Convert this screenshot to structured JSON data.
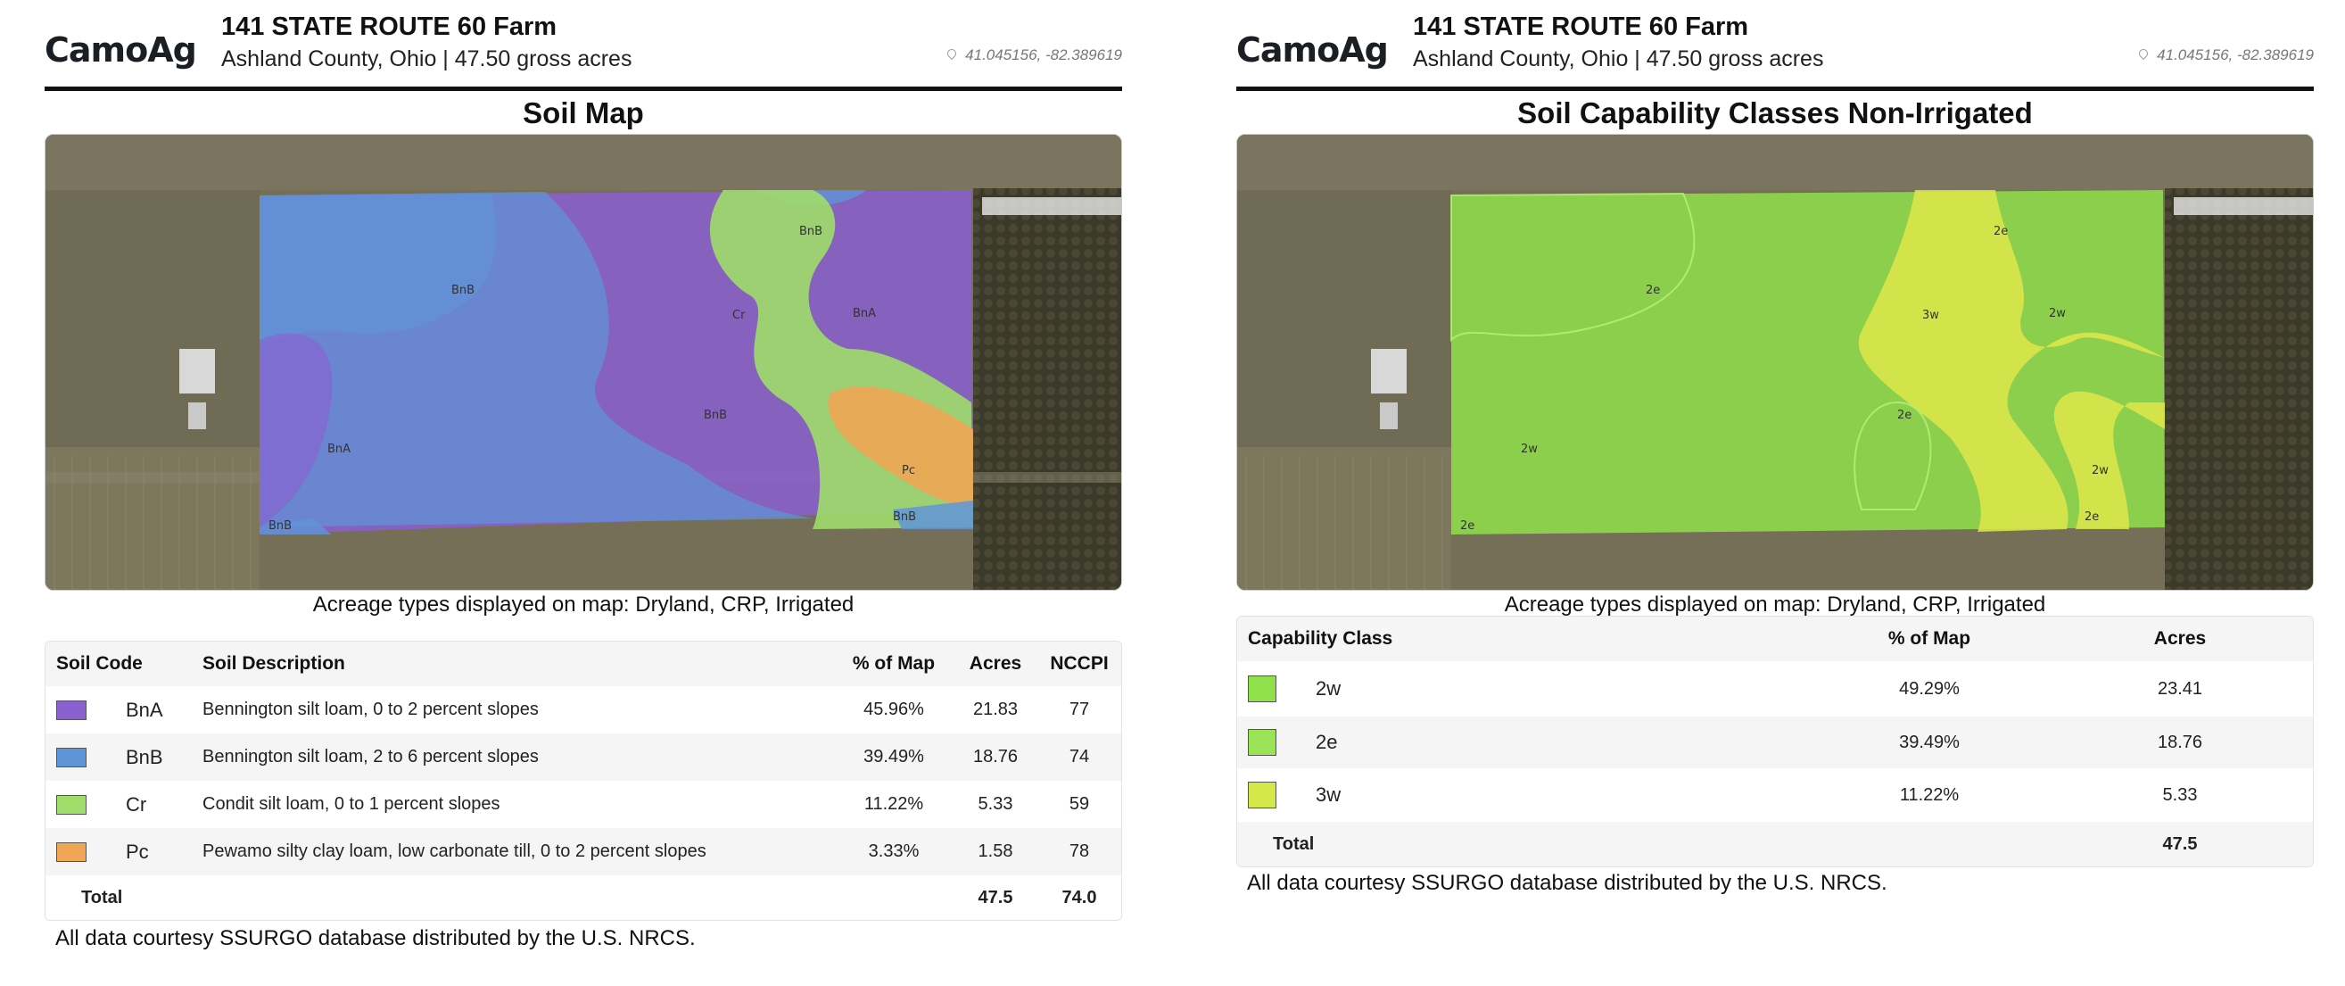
{
  "brand": {
    "logo_text": "CamoAg"
  },
  "farm": {
    "title": "141 STATE ROUTE 60 Farm",
    "subtitle": "Ashland County, Ohio | 47.50 gross acres",
    "coords": "41.045156, -82.389619"
  },
  "soil_map": {
    "title": "Soil Map",
    "acreage_note": "Acreage types displayed on map: Dryland, CRP, Irrigated",
    "map_labels": [
      "BnB",
      "BnB",
      "Cr",
      "BnA",
      "BnB",
      "BnA",
      "Pc",
      "BnB",
      "BnB"
    ],
    "columns": {
      "code": "Soil Code",
      "desc": "Soil Description",
      "pct": "% of Map",
      "acres": "Acres",
      "nccpi": "NCCPI"
    },
    "rows": [
      {
        "code": "BnA",
        "desc": "Bennington silt loam, 0 to 2 percent slopes",
        "pct": "45.96%",
        "acres": "21.83",
        "nccpi": "77",
        "color": "#8a5fd0"
      },
      {
        "code": "BnB",
        "desc": "Bennington silt loam, 2 to 6 percent slopes",
        "pct": "39.49%",
        "acres": "18.76",
        "nccpi": "74",
        "color": "#5f95d8"
      },
      {
        "code": "Cr",
        "desc": "Condit silt loam, 0 to 1 percent slopes",
        "pct": "11.22%",
        "acres": "5.33",
        "nccpi": "59",
        "color": "#a0dc6a"
      },
      {
        "code": "Pc",
        "desc": "Pewamo silty clay loam, low carbonate till, 0 to 2 percent slopes",
        "pct": "3.33%",
        "acres": "1.58",
        "nccpi": "78",
        "color": "#f0a655"
      }
    ],
    "total": {
      "label": "Total",
      "acres": "47.5",
      "nccpi": "74.0"
    },
    "footnote": "All data courtesy SSURGO database distributed by the U.S. NRCS."
  },
  "capability_map": {
    "title": "Soil Capability Classes Non-Irrigated",
    "acreage_note": "Acreage types displayed on map: Dryland, CRP, Irrigated",
    "map_labels": [
      "2e",
      "2e",
      "3w",
      "2w",
      "2e",
      "2w",
      "2w",
      "2e",
      "2e"
    ],
    "columns": {
      "cls": "Capability Class",
      "pct": "% of Map",
      "acres": "Acres"
    },
    "rows": [
      {
        "cls": "2w",
        "pct": "49.29%",
        "acres": "23.41",
        "color": "#8fe04a"
      },
      {
        "cls": "2e",
        "pct": "39.49%",
        "acres": "18.76",
        "color": "#9be356"
      },
      {
        "cls": "3w",
        "pct": "11.22%",
        "acres": "5.33",
        "color": "#d4e84a"
      }
    ],
    "total": {
      "label": "Total",
      "acres": "47.5"
    },
    "footnote": "All data courtesy SSURGO database distributed by the U.S. NRCS."
  }
}
